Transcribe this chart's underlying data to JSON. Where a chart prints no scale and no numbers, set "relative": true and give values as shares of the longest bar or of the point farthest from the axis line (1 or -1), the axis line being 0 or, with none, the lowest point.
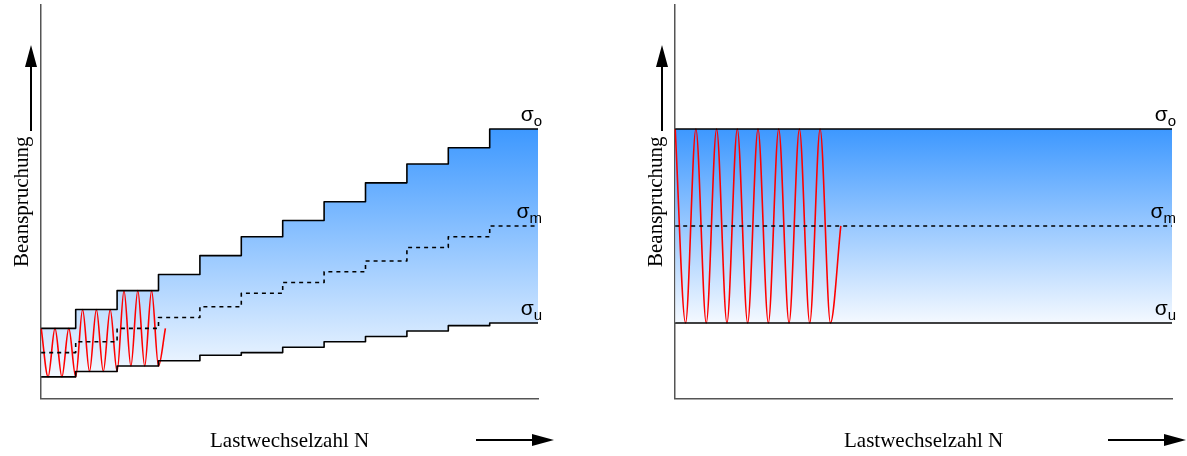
{
  "chart_data": [
    {
      "type": "step",
      "xlabel": "Lastwechselzahl N",
      "ylabel": "Beanspruchung",
      "relative": true,
      "categories": [
        null,
        null,
        null,
        null,
        null,
        null,
        null,
        null,
        null,
        null,
        null,
        null,
        null,
        null,
        null,
        null,
        null,
        null,
        null,
        null,
        null,
        null,
        null,
        null,
        null,
        null,
        null,
        null,
        null,
        null,
        null,
        null,
        null,
        null,
        null,
        null,
        null,
        null,
        null,
        null,
        null,
        null,
        null,
        null,
        null,
        null,
        null,
        null,
        null,
        null,
        null,
        null,
        null,
        null,
        null,
        null,
        null,
        null,
        null,
        null,
        null,
        null,
        null,
        null,
        null,
        null,
        null,
        null,
        null,
        null,
        null,
        null,
        null
      ],
      "series": [
        {
          "name": "σ$_{o}$",
          "color": "#000000",
          "values": [
            0.26,
            0.26,
            0.26,
            0.26,
            0.26,
            0.26,
            0.33,
            0.33,
            0.33,
            0.33,
            0.33,
            0.33,
            0.4,
            0.4,
            0.4,
            0.4,
            0.4,
            0.4,
            0.46,
            0.46,
            0.46,
            0.46,
            0.46,
            0.46,
            0.53,
            0.53,
            0.53,
            0.53,
            0.53,
            0.53,
            0.6,
            0.6,
            0.6,
            0.6,
            0.6,
            0.6,
            0.66,
            0.66,
            0.66,
            0.66,
            0.66,
            0.66,
            0.73,
            0.73,
            0.73,
            0.73,
            0.73,
            0.73,
            0.8,
            0.8,
            0.8,
            0.8,
            0.8,
            0.8,
            0.87,
            0.87,
            0.87,
            0.87,
            0.87,
            0.87,
            0.93,
            0.93,
            0.93,
            0.93,
            0.93,
            0.93,
            1,
            1,
            1,
            1,
            1,
            1,
            1
          ]
        },
        {
          "name": "σ$_{m}$",
          "color": "#000000",
          "line_style": "dashed",
          "values": [
            0.17,
            0.17,
            0.17,
            0.17,
            0.17,
            0.17,
            0.21,
            0.21,
            0.21,
            0.21,
            0.21,
            0.21,
            0.26,
            0.26,
            0.26,
            0.26,
            0.26,
            0.26,
            0.3,
            0.3,
            0.3,
            0.3,
            0.3,
            0.3,
            0.34,
            0.34,
            0.34,
            0.34,
            0.34,
            0.34,
            0.39,
            0.39,
            0.39,
            0.39,
            0.39,
            0.39,
            0.43,
            0.43,
            0.43,
            0.43,
            0.43,
            0.43,
            0.47,
            0.47,
            0.47,
            0.47,
            0.47,
            0.47,
            0.51,
            0.51,
            0.51,
            0.51,
            0.51,
            0.51,
            0.56,
            0.56,
            0.56,
            0.56,
            0.56,
            0.56,
            0.6,
            0.6,
            0.6,
            0.6,
            0.6,
            0.6,
            0.64,
            0.64,
            0.64,
            0.64,
            0.64,
            0.64,
            0.64
          ],
          "lower": [
            0.08,
            0.08,
            0.08,
            0.08,
            0.08,
            0.08,
            0.1,
            0.1,
            0.1,
            0.1,
            0.1,
            0.1,
            0.12,
            0.12,
            0.12,
            0.12,
            0.12,
            0.12,
            0.14,
            0.14,
            0.14,
            0.14,
            0.14,
            0.14,
            0.16,
            0.16,
            0.16,
            0.16,
            0.16,
            0.16,
            0.17,
            0.17,
            0.17,
            0.17,
            0.17,
            0.17,
            0.19,
            0.19,
            0.19,
            0.19,
            0.19,
            0.19,
            0.21,
            0.21,
            0.21,
            0.21,
            0.21,
            0.21,
            0.23,
            0.23,
            0.23,
            0.23,
            0.23,
            0.23,
            0.25,
            0.25,
            0.25,
            0.25,
            0.25,
            0.25,
            0.27,
            0.27,
            0.27,
            0.27,
            0.27,
            0.27,
            0.28,
            0.28,
            0.28,
            0.28,
            0.28,
            0.28,
            0.28
          ],
          "upper": [
            0.26,
            0.26,
            0.26,
            0.26,
            0.26,
            0.26,
            0.33,
            0.33,
            0.33,
            0.33,
            0.33,
            0.33,
            0.4,
            0.4,
            0.4,
            0.4,
            0.4,
            0.4,
            0.46,
            0.46,
            0.46,
            0.46,
            0.46,
            0.46,
            0.53,
            0.53,
            0.53,
            0.53,
            0.53,
            0.53,
            0.6,
            0.6,
            0.6,
            0.6,
            0.6,
            0.6,
            0.66,
            0.66,
            0.66,
            0.66,
            0.66,
            0.66,
            0.73,
            0.73,
            0.73,
            0.73,
            0.73,
            0.73,
            0.8,
            0.8,
            0.8,
            0.8,
            0.8,
            0.8,
            0.87,
            0.87,
            0.87,
            0.87,
            0.87,
            0.87,
            0.93,
            0.93,
            0.93,
            0.93,
            0.93,
            0.93,
            1,
            1,
            1,
            1,
            1,
            1,
            1
          ]
        },
        {
          "name": "σ$_{u}$",
          "color": "#000000",
          "values": [
            0.08,
            0.08,
            0.08,
            0.08,
            0.08,
            0.08,
            0.1,
            0.1,
            0.1,
            0.1,
            0.1,
            0.1,
            0.12,
            0.12,
            0.12,
            0.12,
            0.12,
            0.12,
            0.14,
            0.14,
            0.14,
            0.14,
            0.14,
            0.14,
            0.16,
            0.16,
            0.16,
            0.16,
            0.16,
            0.16,
            0.17,
            0.17,
            0.17,
            0.17,
            0.17,
            0.17,
            0.19,
            0.19,
            0.19,
            0.19,
            0.19,
            0.19,
            0.21,
            0.21,
            0.21,
            0.21,
            0.21,
            0.21,
            0.23,
            0.23,
            0.23,
            0.23,
            0.23,
            0.23,
            0.25,
            0.25,
            0.25,
            0.25,
            0.25,
            0.25,
            0.27,
            0.27,
            0.27,
            0.27,
            0.27,
            0.27,
            0.28,
            0.28,
            0.28,
            0.28,
            0.28,
            0.28,
            0.28
          ]
        },
        {
          "type": "line",
          "color": "#ff0000",
          "values": [
            0.26,
            0.08,
            0.26,
            0.08,
            0.26,
            0.08,
            0.33,
            0.1,
            0.33,
            0.1,
            0.33,
            0.1,
            0.4,
            0.12,
            0.4,
            0.12,
            0.4,
            0.12,
            0.26,
            null,
            null,
            null,
            null,
            null,
            null,
            null,
            null,
            null,
            null,
            null,
            null,
            null,
            null,
            null,
            null,
            null,
            null,
            null,
            null,
            null,
            null,
            null,
            null,
            null,
            null,
            null,
            null,
            null,
            null,
            null,
            null,
            null,
            null,
            null,
            null,
            null,
            null,
            null,
            null,
            null,
            null,
            null,
            null,
            null,
            null,
            null,
            null,
            null,
            null,
            null,
            null,
            null,
            null
          ]
        }
      ]
    },
    {
      "type": "line",
      "xlabel": "Lastwechselzahl N",
      "ylabel": "Beanspruchung",
      "relative": true,
      "categories": [
        null,
        null,
        null,
        null,
        null,
        null,
        null,
        null,
        null,
        null,
        null,
        null,
        null,
        null,
        null,
        null,
        null,
        null,
        null,
        null,
        null,
        null,
        null,
        null,
        null,
        null,
        null,
        null,
        null,
        null,
        null,
        null,
        null,
        null,
        null,
        null,
        null,
        null,
        null,
        null,
        null,
        null,
        null,
        null,
        null,
        null,
        null,
        null,
        null
      ],
      "series": [
        {
          "name": "σ$_{o}$",
          "color": "#000000",
          "values": [
            1,
            1,
            1,
            1,
            1,
            1,
            1,
            1,
            1,
            1,
            1,
            1,
            1,
            1,
            1,
            1,
            1,
            1,
            1,
            1,
            1,
            1,
            1,
            1,
            1,
            1,
            1,
            1,
            1,
            1,
            1,
            1,
            1,
            1,
            1,
            1,
            1,
            1,
            1,
            1,
            1,
            1,
            1,
            1,
            1,
            1,
            1,
            1,
            1
          ]
        },
        {
          "name": "σ$_{m}$",
          "color": "#000000",
          "line_style": "dashed",
          "values": [
            0.64,
            0.64,
            0.64,
            0.64,
            0.64,
            0.64,
            0.64,
            0.64,
            0.64,
            0.64,
            0.64,
            0.64,
            0.64,
            0.64,
            0.64,
            0.64,
            0.64,
            0.64,
            0.64,
            0.64,
            0.64,
            0.64,
            0.64,
            0.64,
            0.64,
            0.64,
            0.64,
            0.64,
            0.64,
            0.64,
            0.64,
            0.64,
            0.64,
            0.64,
            0.64,
            0.64,
            0.64,
            0.64,
            0.64,
            0.64,
            0.64,
            0.64,
            0.64,
            0.64,
            0.64,
            0.64,
            0.64,
            0.64,
            0.64
          ],
          "lower": [
            0.28,
            0.28,
            0.28,
            0.28,
            0.28,
            0.28,
            0.28,
            0.28,
            0.28,
            0.28,
            0.28,
            0.28,
            0.28,
            0.28,
            0.28,
            0.28,
            0.28,
            0.28,
            0.28,
            0.28,
            0.28,
            0.28,
            0.28,
            0.28,
            0.28,
            0.28,
            0.28,
            0.28,
            0.28,
            0.28,
            0.28,
            0.28,
            0.28,
            0.28,
            0.28,
            0.28,
            0.28,
            0.28,
            0.28,
            0.28,
            0.28,
            0.28,
            0.28,
            0.28,
            0.28,
            0.28,
            0.28,
            0.28,
            0.28
          ],
          "upper": [
            1,
            1,
            1,
            1,
            1,
            1,
            1,
            1,
            1,
            1,
            1,
            1,
            1,
            1,
            1,
            1,
            1,
            1,
            1,
            1,
            1,
            1,
            1,
            1,
            1,
            1,
            1,
            1,
            1,
            1,
            1,
            1,
            1,
            1,
            1,
            1,
            1,
            1,
            1,
            1,
            1,
            1,
            1,
            1,
            1,
            1,
            1,
            1,
            1
          ]
        },
        {
          "name": "σ$_{u}$",
          "color": "#000000",
          "values": [
            0.28,
            0.28,
            0.28,
            0.28,
            0.28,
            0.28,
            0.28,
            0.28,
            0.28,
            0.28,
            0.28,
            0.28,
            0.28,
            0.28,
            0.28,
            0.28,
            0.28,
            0.28,
            0.28,
            0.28,
            0.28,
            0.28,
            0.28,
            0.28,
            0.28,
            0.28,
            0.28,
            0.28,
            0.28,
            0.28,
            0.28,
            0.28,
            0.28,
            0.28,
            0.28,
            0.28,
            0.28,
            0.28,
            0.28,
            0.28,
            0.28,
            0.28,
            0.28,
            0.28,
            0.28,
            0.28,
            0.28,
            0.28,
            0.28
          ]
        },
        {
          "color": "#ff0000",
          "values": [
            1,
            0.28,
            1,
            0.28,
            1,
            0.28,
            1,
            0.28,
            1,
            0.28,
            1,
            0.28,
            1,
            0.28,
            1,
            0.28,
            0.64,
            null,
            null,
            null,
            null,
            null,
            null,
            null,
            null,
            null,
            null,
            null,
            null,
            null,
            null,
            null,
            null,
            null,
            null,
            null,
            null,
            null,
            null,
            null,
            null,
            null,
            null,
            null,
            null,
            null,
            null,
            null,
            null
          ]
        }
      ]
    }
  ]
}
